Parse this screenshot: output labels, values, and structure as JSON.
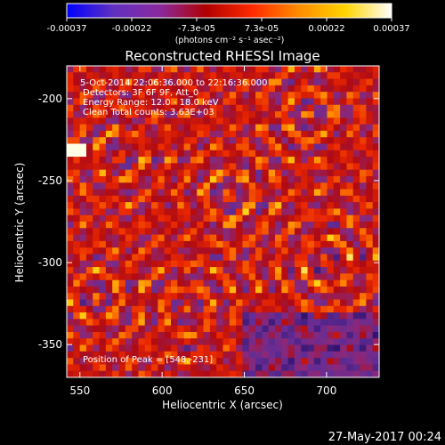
{
  "chart_data": {
    "type": "heatmap",
    "title": "Reconstructed RHESSI Image",
    "xlabel": "Heliocentric X (arcsec)",
    "ylabel": "Heliocentric Y (arcsec)",
    "xlim": [
      542,
      732
    ],
    "ylim": [
      -370,
      -180
    ],
    "x_ticks": [
      550,
      600,
      650,
      700
    ],
    "y_ticks": [
      -350,
      -300,
      -250,
      -200
    ],
    "colorbar": {
      "ticks": [
        "-0.00037",
        "-0.00022",
        "-7.3e-05",
        "7.3e-05",
        "0.00022",
        "0.00037"
      ],
      "range": [
        -0.00037,
        0.00037
      ],
      "unit_label": "(photons cm⁻² s⁻¹ asec⁻²)",
      "colors": [
        "#0000ff",
        "#6030c0",
        "#8a2aa0",
        "#b00000",
        "#ff2a00",
        "#ff8c00",
        "#ffd400",
        "#ffffff"
      ]
    },
    "annotations": [
      "5-Oct-2014 22:06:36.000 to 22:16:36.000",
      "Detectors: 3F 6F 9F, Att_0",
      "Energy Range: 12.0 - 18.0 keV",
      "Clean     Total counts: 3.63E+03"
    ],
    "peak_label": "Position of Peak = [548,-231]",
    "peak": [
      548,
      -231
    ],
    "grid": false
  },
  "footer": {
    "date": "27-May-2017 00:24"
  }
}
